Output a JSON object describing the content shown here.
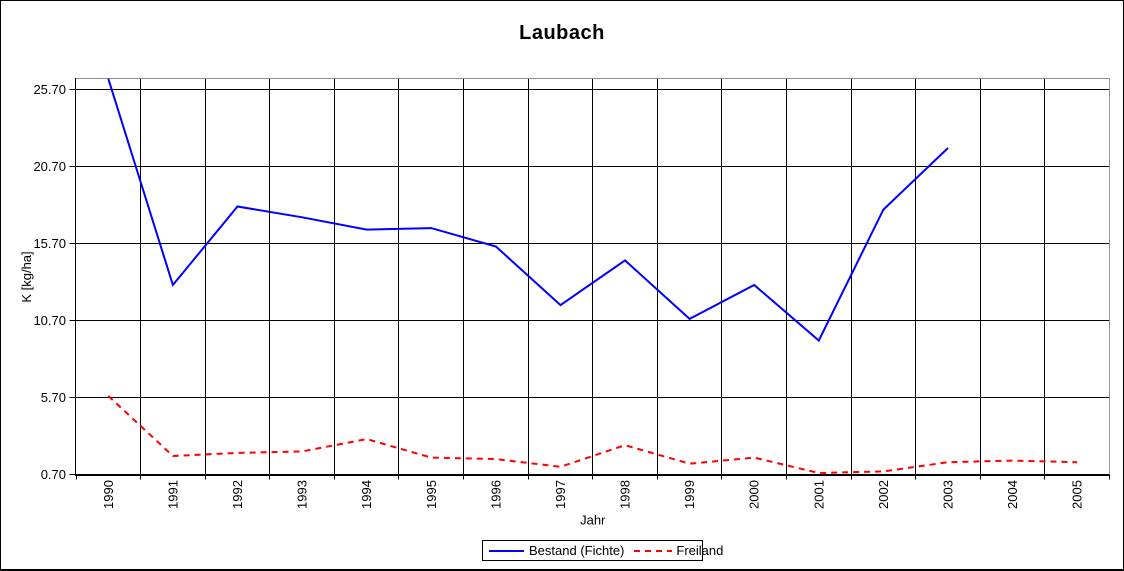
{
  "chart_data": {
    "type": "line",
    "title": "Laubach",
    "xlabel": "Jahr",
    "ylabel": "K [kg/ha]",
    "categories": [
      "1990",
      "1991",
      "1992",
      "1993",
      "1994",
      "1995",
      "1996",
      "1997",
      "1998",
      "1999",
      "2000",
      "2001",
      "2002",
      "2003",
      "2004",
      "2005"
    ],
    "series": [
      {
        "name": "Bestand (Fichte)",
        "color": "#0000FF",
        "style": "solid",
        "values": [
          26.4,
          13.0,
          18.1,
          17.4,
          16.6,
          16.7,
          15.5,
          11.7,
          14.6,
          10.8,
          13.0,
          9.4,
          17.9,
          21.9,
          null,
          null
        ]
      },
      {
        "name": "Freiland",
        "color": "#FF0000",
        "style": "dashed",
        "values": [
          5.8,
          1.9,
          2.1,
          2.2,
          3.0,
          1.8,
          1.7,
          1.2,
          2.6,
          1.4,
          1.8,
          0.8,
          0.9,
          1.5,
          1.6,
          1.5
        ]
      }
    ],
    "ylim": [
      0.7,
      26.41
    ],
    "yticks": [
      0.7,
      5.7,
      10.7,
      15.7,
      20.7,
      25.7
    ],
    "ytick_format": "2-decimals",
    "grid": "both",
    "grid_color": "#000000",
    "plot_border_color": "#909090",
    "legend_position": "bottom-center"
  }
}
